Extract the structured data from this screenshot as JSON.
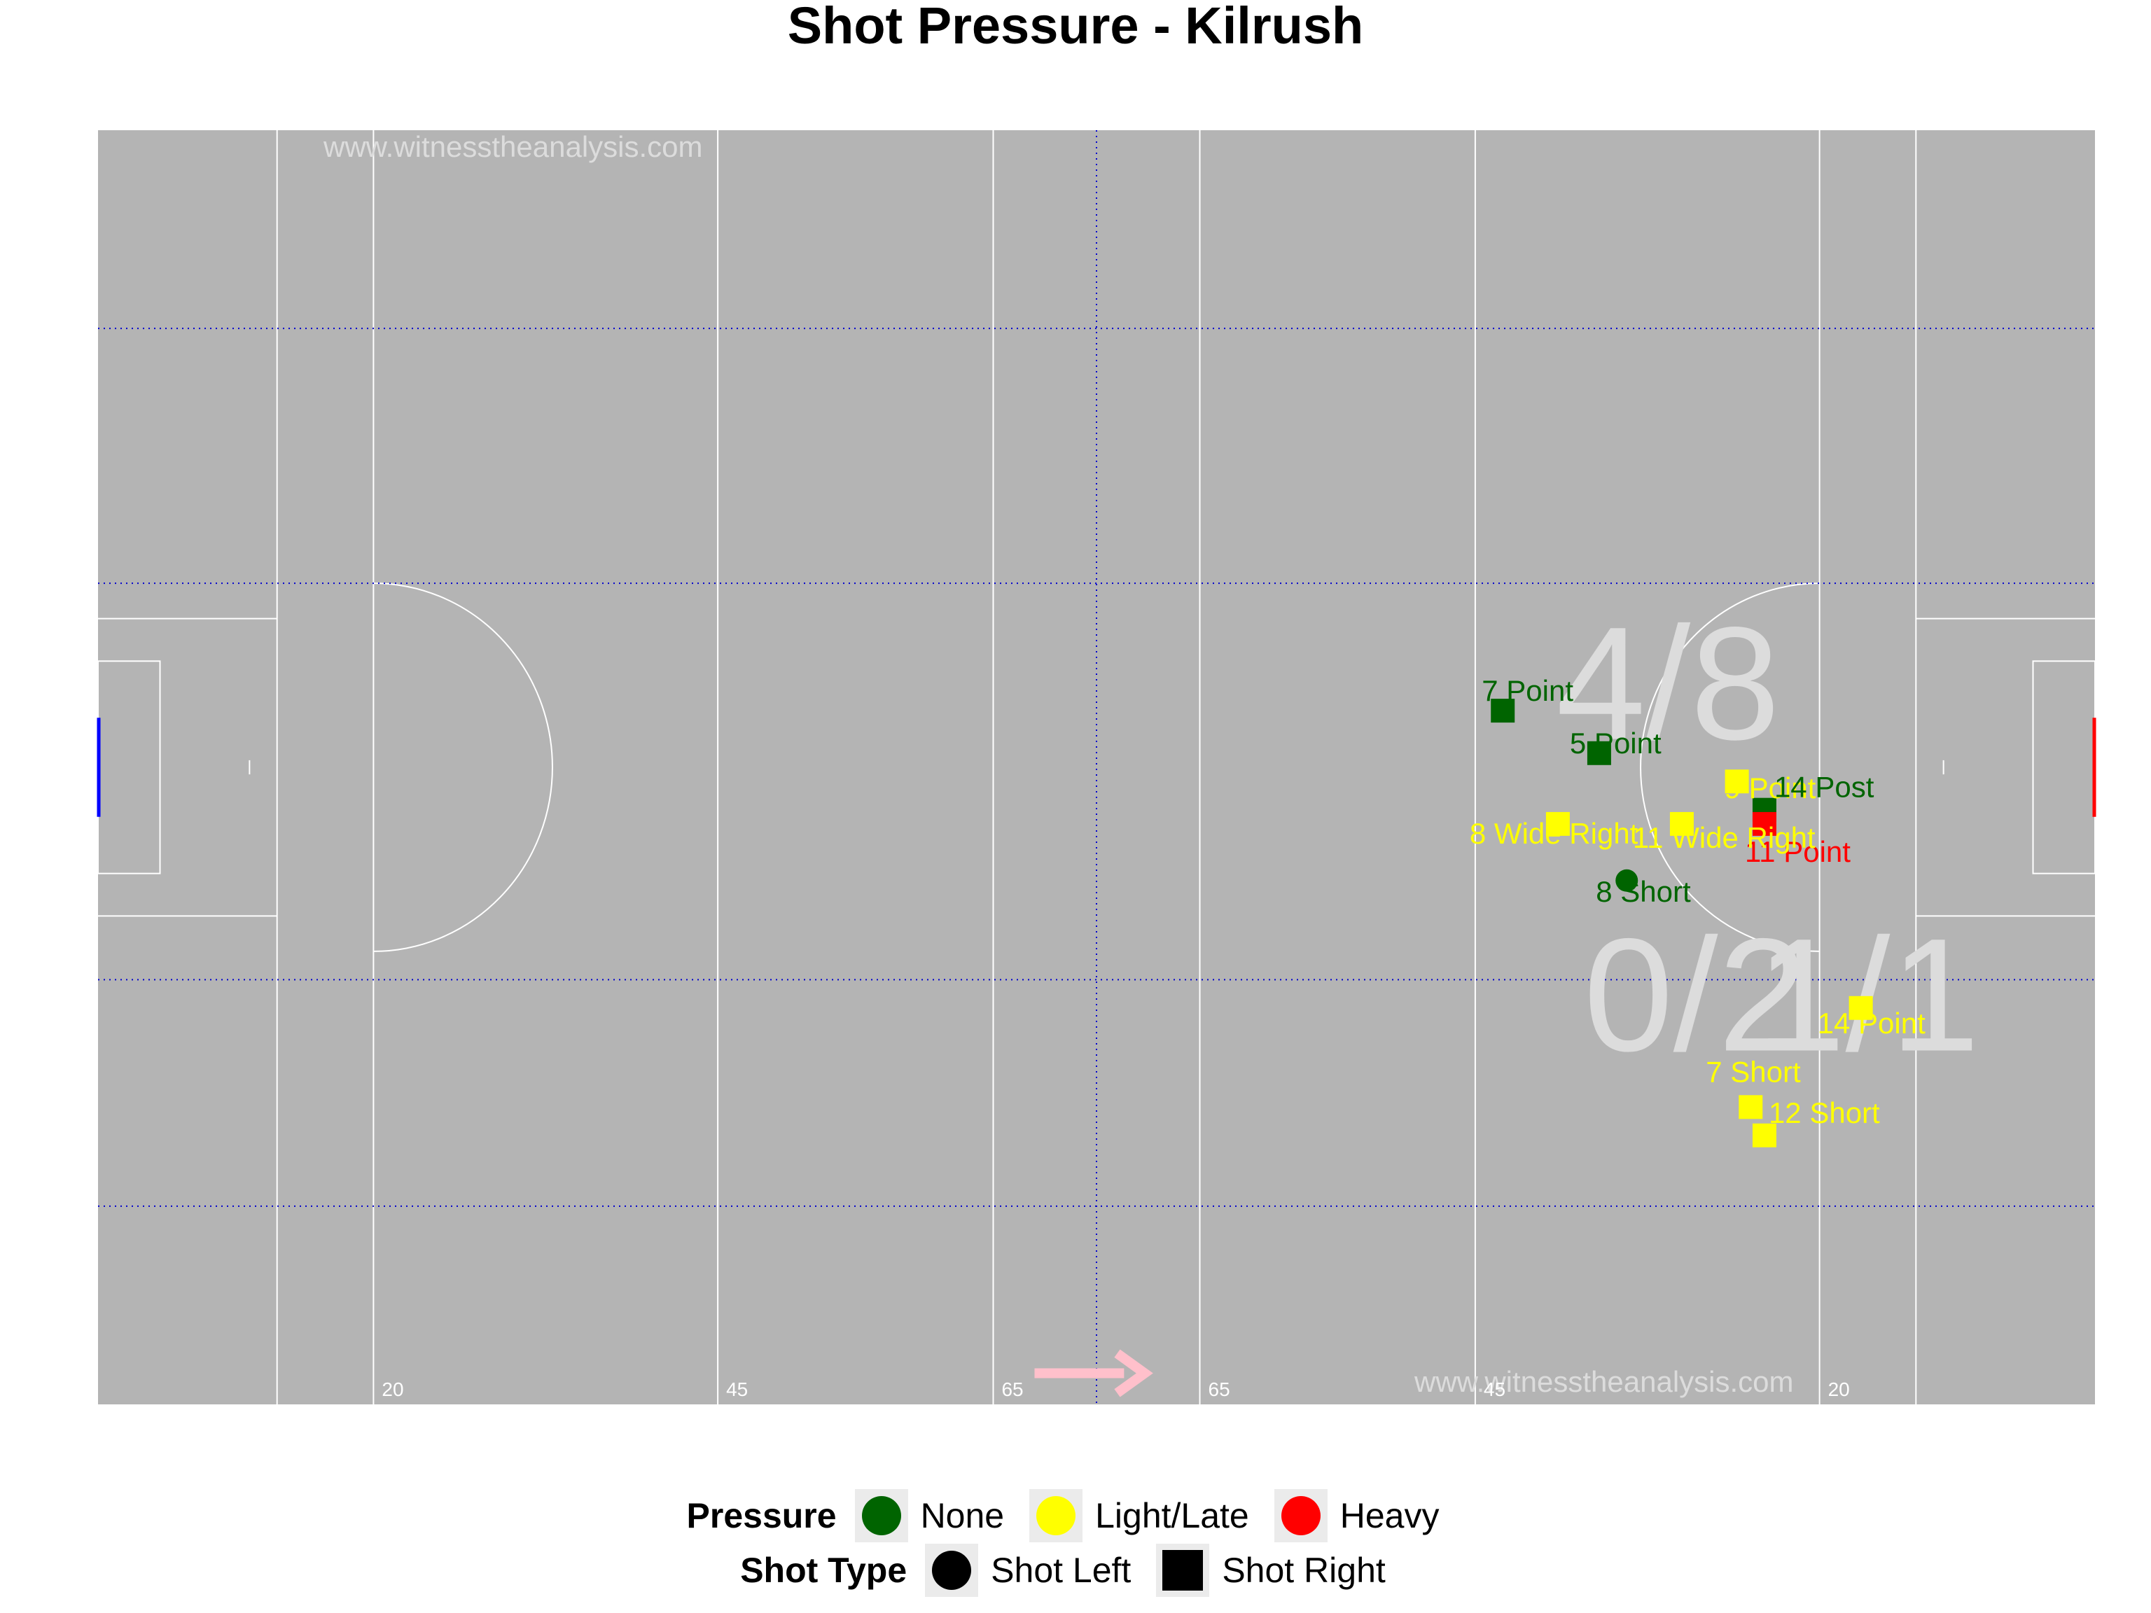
{
  "chart_data": {
    "type": "scatter",
    "title": "Shot Pressure - Kilrush",
    "watermark": "www.witnesstheanalysis.com",
    "pitch_markings": [
      "20",
      "45",
      "65",
      "65",
      "45",
      "20"
    ],
    "xlim": [
      0,
      145
    ],
    "ylim": [
      0,
      90
    ],
    "sector_stats": [
      {
        "label": "4/8"
      },
      {
        "label": "0/2"
      },
      {
        "label": "1/1"
      }
    ],
    "points": [
      {
        "label": "7 Point",
        "x": 102,
        "y": 49,
        "pressure": "None",
        "shot_type": "Shot Right"
      },
      {
        "label": "5 Point",
        "x": 109,
        "y": 46,
        "pressure": "None",
        "shot_type": "Shot Right"
      },
      {
        "label": "9 Point",
        "x": 119,
        "y": 44,
        "pressure": "Light/Late",
        "shot_type": "Shot Right"
      },
      {
        "label": "14 Post",
        "x": 121,
        "y": 42,
        "pressure": "None",
        "shot_type": "Shot Right"
      },
      {
        "label": "11 Point",
        "x": 121,
        "y": 41,
        "pressure": "Heavy",
        "shot_type": "Shot Right"
      },
      {
        "label": "8 Wide Right",
        "x": 106,
        "y": 41,
        "pressure": "Light/Late",
        "shot_type": "Shot Right"
      },
      {
        "label": "11 Wide Right",
        "x": 115,
        "y": 41,
        "pressure": "Light/Late",
        "shot_type": "Shot Right"
      },
      {
        "label": "8 Short",
        "x": 111,
        "y": 37,
        "pressure": "None",
        "shot_type": "Shot Left"
      },
      {
        "label": "14 Point",
        "x": 128,
        "y": 28,
        "pressure": "Light/Late",
        "shot_type": "Shot Right"
      },
      {
        "label": "7 Short",
        "x": 120,
        "y": 21,
        "pressure": "Light/Late",
        "shot_type": "Shot Right"
      },
      {
        "label": "12 Short",
        "x": 121,
        "y": 19,
        "pressure": "Light/Late",
        "shot_type": "Shot Right"
      }
    ],
    "legend": {
      "pressure_title": "Pressure",
      "pressure": [
        {
          "label": "None",
          "color": "#006400"
        },
        {
          "label": "Light/Late",
          "color": "#ffff00"
        },
        {
          "label": "Heavy",
          "color": "#ff0000"
        }
      ],
      "shot_type_title": "Shot Type",
      "shot_type": [
        {
          "label": "Shot Left",
          "shape": "circle"
        },
        {
          "label": "Shot Right",
          "shape": "square"
        }
      ]
    },
    "colors": {
      "pitch": "#b4b4b4",
      "pitch_lines": "#ffffff",
      "guide_lines": "#0000cd",
      "direction_arrow": "#ffc0cb",
      "left_goal": "#0000ff",
      "right_goal": "#ff0000",
      "stat_text": "#dcdcdc"
    }
  }
}
